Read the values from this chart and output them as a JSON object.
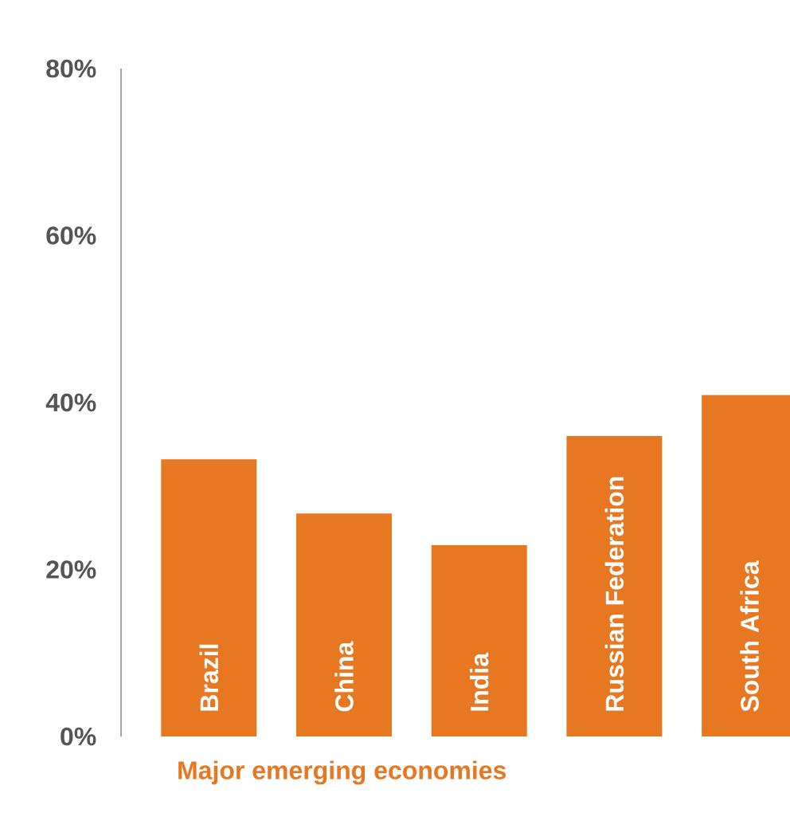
{
  "chart_data": {
    "type": "bar",
    "xlabel": "Major emerging economies",
    "categories": [
      "Brazil",
      "China",
      "India",
      "Russian Federation",
      "South Africa"
    ],
    "values": [
      33.2,
      26.7,
      22.9,
      36.0,
      40.9
    ],
    "color": "#e87722",
    "ylim": [
      0,
      80
    ],
    "yticks": [
      {
        "value": 0,
        "label": "0%"
      },
      {
        "value": 20,
        "label": "20%"
      },
      {
        "value": 40,
        "label": "40%"
      },
      {
        "value": 60,
        "label": "60%"
      },
      {
        "value": 80,
        "label": "80%"
      }
    ]
  }
}
